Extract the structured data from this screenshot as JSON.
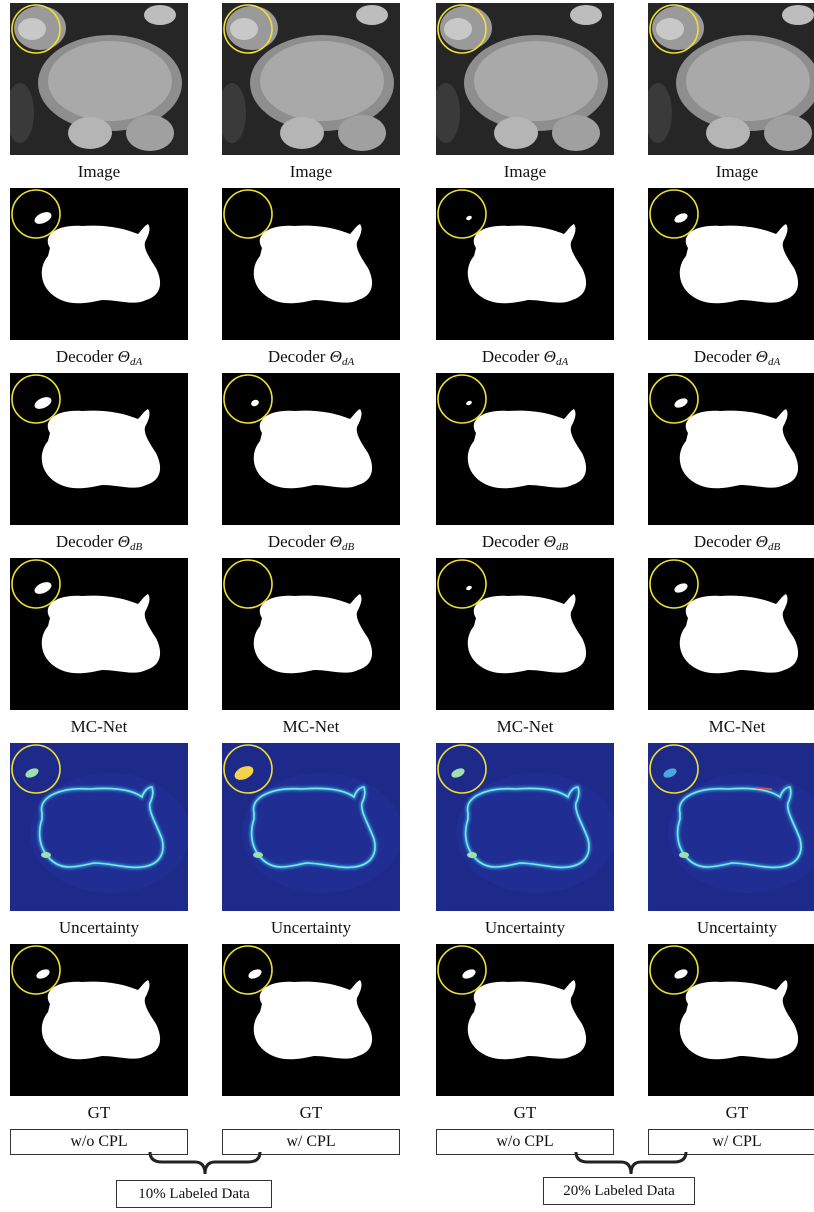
{
  "columns": [
    {
      "id": "c1",
      "rows": [
        {
          "kind": "image",
          "caption": "Image"
        },
        {
          "kind": "mask",
          "caption": "Decoder",
          "sub": "dA",
          "blob": "large"
        },
        {
          "kind": "mask",
          "caption": "Decoder",
          "sub": "dB",
          "blob": "large"
        },
        {
          "kind": "mask",
          "caption": "MC-Net",
          "blob": "large"
        },
        {
          "kind": "uncertainty",
          "caption": "Uncertainty",
          "level": "mid"
        },
        {
          "kind": "mask",
          "caption": "GT",
          "blob": "mid"
        }
      ],
      "setting": "w/o CPL"
    },
    {
      "id": "c2",
      "rows": [
        {
          "kind": "image",
          "caption": "Image"
        },
        {
          "kind": "mask",
          "caption": "Decoder",
          "sub": "dA",
          "blob": "none"
        },
        {
          "kind": "mask",
          "caption": "Decoder",
          "sub": "dB",
          "blob": "small"
        },
        {
          "kind": "mask",
          "caption": "MC-Net",
          "blob": "none"
        },
        {
          "kind": "uncertainty",
          "caption": "Uncertainty",
          "level": "high"
        },
        {
          "kind": "mask",
          "caption": "GT",
          "blob": "mid"
        }
      ],
      "setting": "w/ CPL"
    },
    {
      "id": "c3",
      "rows": [
        {
          "kind": "image",
          "caption": "Image"
        },
        {
          "kind": "mask",
          "caption": "Decoder",
          "sub": "dA",
          "blob": "tiny"
        },
        {
          "kind": "mask",
          "caption": "Decoder",
          "sub": "dB",
          "blob": "tiny"
        },
        {
          "kind": "mask",
          "caption": "MC-Net",
          "blob": "tiny"
        },
        {
          "kind": "uncertainty",
          "caption": "Uncertainty",
          "level": "mid"
        },
        {
          "kind": "mask",
          "caption": "GT",
          "blob": "mid"
        }
      ],
      "setting": "w/o CPL"
    },
    {
      "id": "c4",
      "rows": [
        {
          "kind": "image",
          "caption": "Image"
        },
        {
          "kind": "mask",
          "caption": "Decoder",
          "sub": "dA",
          "blob": "mid"
        },
        {
          "kind": "mask",
          "caption": "Decoder",
          "sub": "dB",
          "blob": "mid"
        },
        {
          "kind": "mask",
          "caption": "MC-Net",
          "blob": "mid"
        },
        {
          "kind": "uncertainty",
          "caption": "Uncertainty",
          "level": "low"
        },
        {
          "kind": "mask",
          "caption": "GT",
          "blob": "mid"
        }
      ],
      "setting": "w/ CPL"
    }
  ],
  "theta_symbol": "Θ",
  "groups": [
    {
      "label": "10% Labeled Data"
    },
    {
      "label": "20% Labeled Data"
    }
  ],
  "colors": {
    "highlight_circle": "#f0e030",
    "mask_background": "#000000",
    "mask_foreground": "#ffffff",
    "uncertainty_background": "#1d2a8a"
  }
}
